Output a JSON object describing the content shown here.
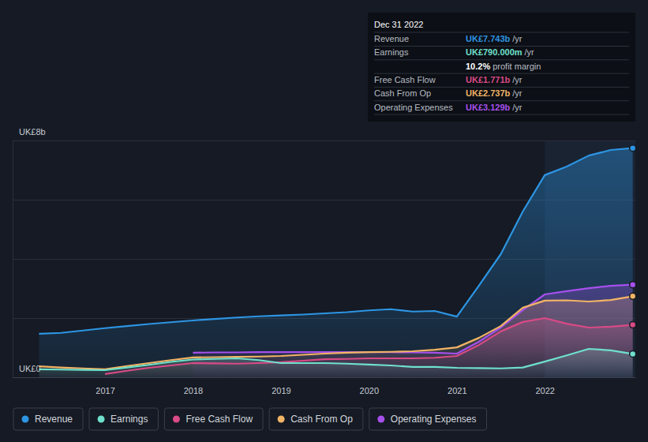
{
  "chart_data": {
    "type": "line",
    "x": [
      2016.25,
      2016.5,
      2016.75,
      2017.0,
      2017.25,
      2017.5,
      2017.75,
      2018.0,
      2018.25,
      2018.5,
      2018.75,
      2019.0,
      2019.25,
      2019.5,
      2019.75,
      2020.0,
      2020.25,
      2020.5,
      2020.75,
      2021.0,
      2021.25,
      2021.5,
      2021.75,
      2022.0,
      2022.25,
      2022.5,
      2022.75,
      2023.0
    ],
    "xlim": [
      2015.95,
      2023.03
    ],
    "xticks": [
      2017,
      2018,
      2019,
      2020,
      2021,
      2022
    ],
    "ylim": [
      0,
      8
    ],
    "yticks": [
      {
        "value": 0,
        "label": "UK£0"
      },
      {
        "value": 2,
        "label": null
      },
      {
        "value": 4,
        "label": null
      },
      {
        "value": 6,
        "label": null
      },
      {
        "value": 8,
        "label": "UK£8b"
      }
    ],
    "grid": true,
    "legend": "bottom-left",
    "series": [
      {
        "name": "Revenue",
        "color": "#2d95e3",
        "values": [
          1.47,
          1.5,
          1.58,
          1.66,
          1.73,
          1.8,
          1.86,
          1.92,
          1.97,
          2.02,
          2.06,
          2.09,
          2.12,
          2.16,
          2.2,
          2.26,
          2.3,
          2.22,
          2.24,
          2.05,
          3.09,
          4.16,
          5.6,
          6.83,
          7.12,
          7.49,
          7.68,
          7.743
        ]
      },
      {
        "name": "Earnings",
        "color": "#6fe0cc",
        "values": [
          0.27,
          0.26,
          0.25,
          0.24,
          0.33,
          0.42,
          0.52,
          0.6,
          0.62,
          0.64,
          0.58,
          0.48,
          0.48,
          0.48,
          0.46,
          0.43,
          0.4,
          0.35,
          0.35,
          0.32,
          0.31,
          0.3,
          0.33,
          0.53,
          0.74,
          0.96,
          0.91,
          0.79
        ]
      },
      {
        "name": "Free Cash Flow",
        "color": "#d94a86",
        "values": [
          null,
          null,
          null,
          0.11,
          0.22,
          0.32,
          0.4,
          0.48,
          0.47,
          0.46,
          0.48,
          0.51,
          0.56,
          0.61,
          0.62,
          0.64,
          0.64,
          0.64,
          0.66,
          0.72,
          1.09,
          1.55,
          1.87,
          2.0,
          1.81,
          1.68,
          1.71,
          1.771
        ]
      },
      {
        "name": "Cash From Op",
        "color": "#f2b465",
        "values": [
          0.37,
          0.33,
          0.3,
          0.27,
          0.38,
          0.48,
          0.58,
          0.67,
          0.68,
          0.69,
          0.7,
          0.72,
          0.76,
          0.8,
          0.83,
          0.85,
          0.86,
          0.88,
          0.93,
          1.01,
          1.33,
          1.73,
          2.35,
          2.59,
          2.6,
          2.56,
          2.61,
          2.737
        ]
      },
      {
        "name": "Operating Expenses",
        "color": "#a650ec",
        "values": [
          null,
          null,
          null,
          null,
          null,
          null,
          null,
          0.83,
          0.84,
          0.84,
          0.85,
          0.85,
          0.85,
          0.85,
          0.85,
          0.85,
          0.85,
          0.84,
          0.83,
          0.8,
          1.2,
          1.68,
          2.27,
          2.8,
          2.91,
          3.01,
          3.09,
          3.129
        ]
      }
    ],
    "annotations": {
      "date": "Dec 31 2022",
      "rows": [
        {
          "label": "Revenue",
          "value": "UK£7.743b",
          "unit": "/yr"
        },
        {
          "label": "Earnings",
          "value": "UK£790.000m",
          "unit": "/yr"
        },
        {
          "value": "10.2%",
          "unit": "profit margin"
        },
        {
          "label": "Free Cash Flow",
          "value": "UK£1.771b",
          "unit": "/yr"
        },
        {
          "label": "Cash From Op",
          "value": "UK£2.737b",
          "unit": "/yr"
        },
        {
          "label": "Operating Expenses",
          "value": "UK£3.129b",
          "unit": "/yr"
        }
      ]
    }
  }
}
